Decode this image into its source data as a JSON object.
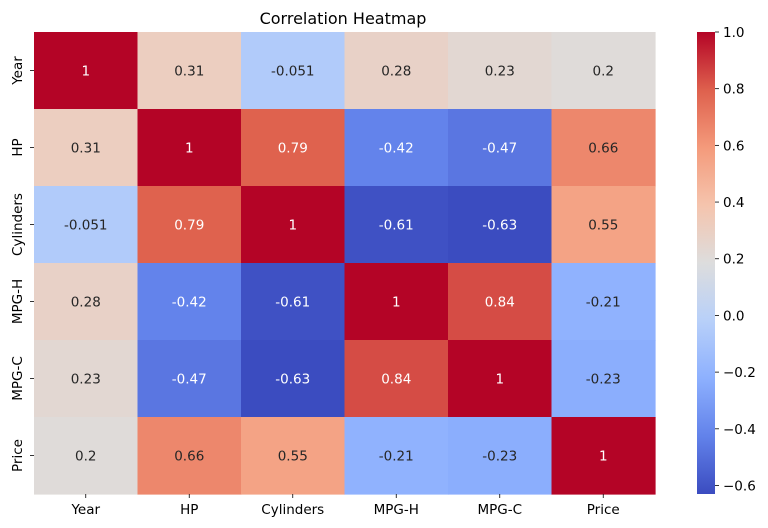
{
  "chart_data": {
    "type": "heatmap",
    "title": "Correlation Heatmap",
    "xlabel": "",
    "ylabel": "",
    "x_categories": [
      "Year",
      "HP",
      "Cylinders",
      "MPG-H",
      "MPG-C",
      "Price"
    ],
    "y_categories": [
      "Year",
      "HP",
      "Cylinders",
      "MPG-H",
      "MPG-C",
      "Price"
    ],
    "values": [
      [
        1,
        0.31,
        -0.051,
        0.28,
        0.23,
        0.2
      ],
      [
        0.31,
        1,
        0.79,
        -0.42,
        -0.47,
        0.66
      ],
      [
        -0.051,
        0.79,
        1,
        -0.61,
        -0.63,
        0.55
      ],
      [
        0.28,
        -0.42,
        -0.61,
        1,
        0.84,
        -0.21
      ],
      [
        0.23,
        -0.47,
        -0.63,
        0.84,
        1,
        -0.23
      ],
      [
        0.2,
        0.66,
        0.55,
        -0.21,
        -0.23,
        1
      ]
    ],
    "colorscale": "coolwarm",
    "vmin": -0.63,
    "vmax": 1.0,
    "colorbar_ticks": [
      "1.0",
      "0.8",
      "0.6",
      "0.4",
      "0.2",
      "0.0",
      "−0.2",
      "−0.4",
      "−0.6"
    ],
    "colorbar_tick_values": [
      1.0,
      0.8,
      0.6,
      0.4,
      0.2,
      0.0,
      -0.2,
      -0.4,
      -0.6
    ],
    "grid": false,
    "colorbar_position": "right"
  }
}
